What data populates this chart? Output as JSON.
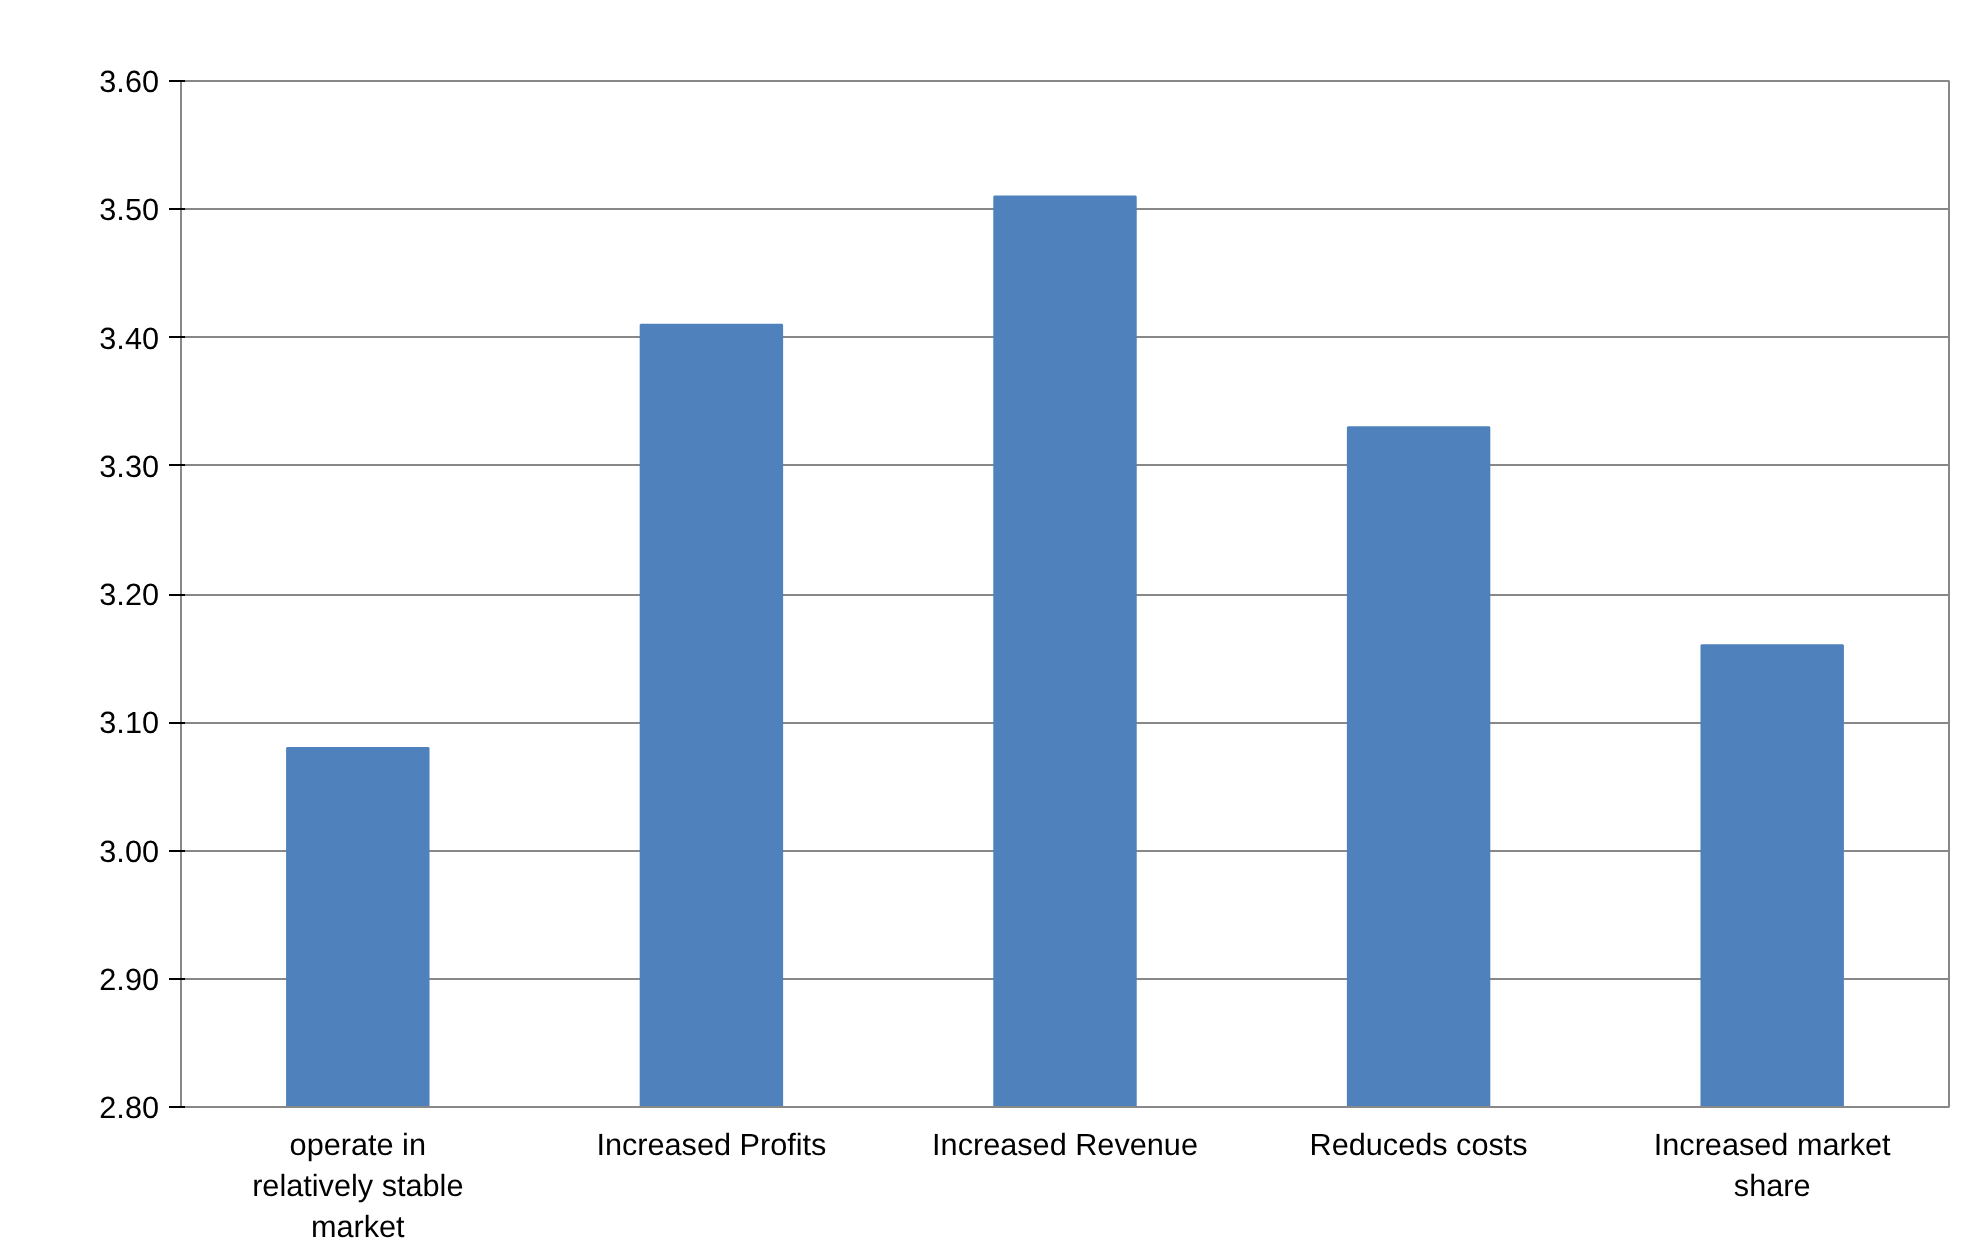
{
  "chart_data": {
    "type": "bar",
    "categories": [
      "operate in relatively stable market",
      "Increased Profits",
      "Increased Revenue",
      "Reduceds costs",
      "Increased market share"
    ],
    "values": [
      3.08,
      3.41,
      3.51,
      3.33,
      3.16
    ],
    "color": "#4f81bd",
    "ylim": [
      2.8,
      3.6
    ],
    "yticks": [
      {
        "value": 2.8,
        "label": "2.80"
      },
      {
        "value": 2.9,
        "label": "2.90"
      },
      {
        "value": 3.0,
        "label": "3.00"
      },
      {
        "value": 3.1,
        "label": "3.10"
      },
      {
        "value": 3.2,
        "label": "3.20"
      },
      {
        "value": 3.3,
        "label": "3.30"
      },
      {
        "value": 3.4,
        "label": "3.40"
      },
      {
        "value": 3.5,
        "label": "3.50"
      },
      {
        "value": 3.6,
        "label": "3.60"
      }
    ],
    "grid": "y"
  }
}
